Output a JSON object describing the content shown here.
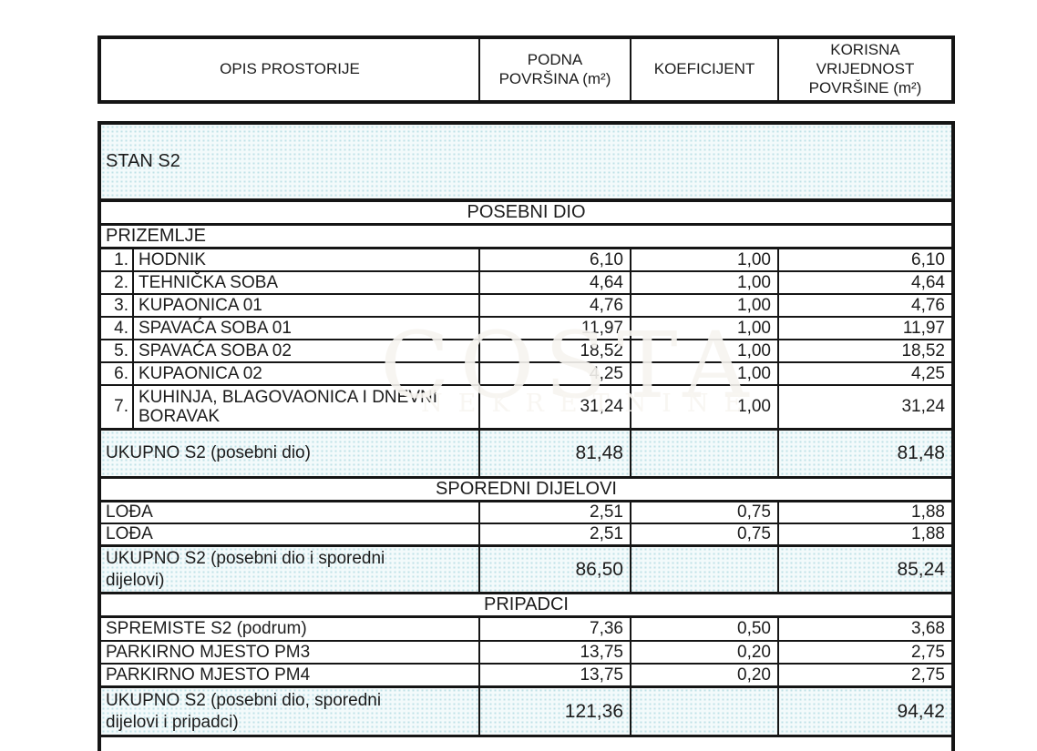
{
  "colors": {
    "border": "#151515",
    "text": "#1c1c1c",
    "highlight_bg": "#e9f4f6",
    "highlight_dot": "#bfe1e7",
    "page_bg": "#ffffff"
  },
  "header": {
    "c1": {
      "lines": [
        "OPIS PROSTORIJE"
      ]
    },
    "c2": {
      "lines": [
        "PODNA",
        "POVRŠINA (m²)"
      ]
    },
    "c3": {
      "lines": [
        "KOEFICIJENT"
      ]
    },
    "c4": {
      "lines": [
        "KORISNA",
        "VRIJEDNOST",
        "POVRŠINE (m²)"
      ]
    }
  },
  "table": {
    "apartment_label": "STAN S2",
    "section_posebni": "POSEBNI DIO",
    "floor_label": "PRIZEMLJE",
    "rooms": [
      {
        "num": "1.",
        "name": "HODNIK",
        "area": "6,10",
        "coef": "1,00",
        "value": "6,10"
      },
      {
        "num": "2.",
        "name": "TEHNIČKA SOBA",
        "area": "4,64",
        "coef": "1,00",
        "value": "4,64"
      },
      {
        "num": "3.",
        "name": "KUPAONICA 01",
        "area": "4,76",
        "coef": "1,00",
        "value": "4,76"
      },
      {
        "num": "4.",
        "name": "SPAVAĆA SOBA 01",
        "area": "11,97",
        "coef": "1,00",
        "value": "11,97"
      },
      {
        "num": "5.",
        "name": "SPAVAĆA SOBA 02",
        "area": "18,52",
        "coef": "1,00",
        "value": "18,52"
      },
      {
        "num": "6.",
        "name": "KUPAONICA 02",
        "area": "4,25",
        "coef": "1,00",
        "value": "4,25"
      },
      {
        "num": "7.",
        "name": "KUHINJA, BLAGOVAONICA I DNEVNI BORAVAK",
        "area": "31,24",
        "coef": "1,00",
        "value": "31,24"
      }
    ],
    "total1": {
      "label": "UKUPNO S2 (posebni dio)",
      "area": "81,48",
      "coef": "",
      "value": "81,48"
    },
    "section_sporedni": "SPOREDNI DIJELOVI",
    "secondary": [
      {
        "name": "LOĐA",
        "area": "2,51",
        "coef": "0,75",
        "value": "1,88"
      },
      {
        "name": "LOĐA",
        "area": "2,51",
        "coef": "0,75",
        "value": "1,88"
      }
    ],
    "total2": {
      "label": "UKUPNO S2 (posebni dio i sporedni dijelovi)",
      "area": "86,50",
      "coef": "",
      "value": "85,24"
    },
    "section_pripadci": "PRIPADCI",
    "appurtenances": [
      {
        "name": "SPREMISTE S2 (podrum)",
        "area": "7,36",
        "coef": "0,50",
        "value": "3,68"
      },
      {
        "name": "PARKIRNO MJESTO PM3",
        "area": "13,75",
        "coef": "0,20",
        "value": "2,75"
      },
      {
        "name": "PARKIRNO MJESTO PM4",
        "area": "13,75",
        "coef": "0,20",
        "value": "2,75"
      }
    ],
    "total3": {
      "label": "UKUPNO S2 (posebni dio, sporedni dijelovi i pripadci)",
      "area": "121,36",
      "coef": "",
      "value": "94,42"
    }
  },
  "watermark": {
    "line1": "COSTA",
    "line2": "NEKRETNINE"
  }
}
